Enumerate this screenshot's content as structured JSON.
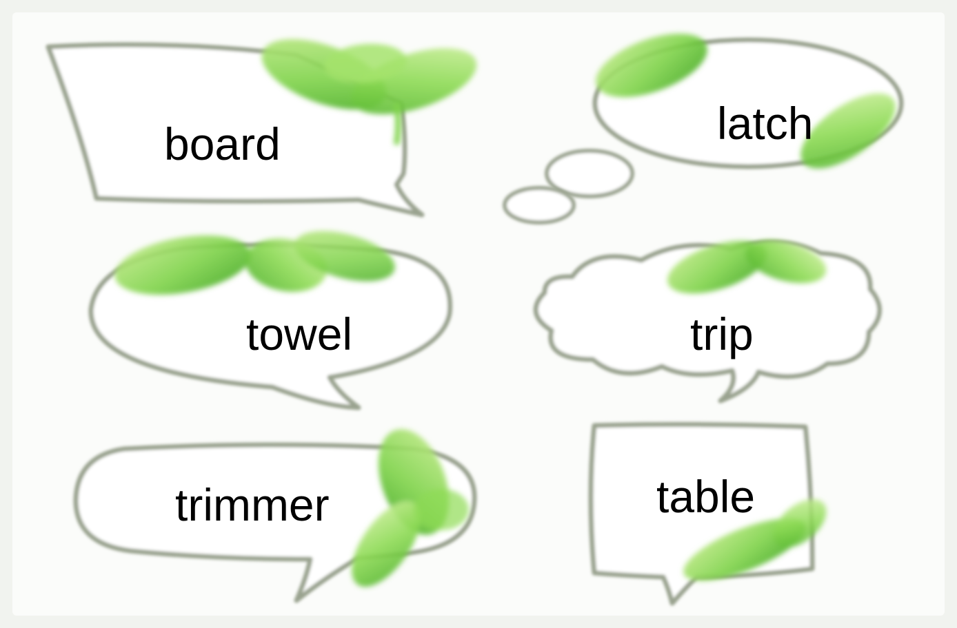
{
  "colors": {
    "background": "#f1f3ef",
    "panel": "#fbfcfa",
    "bubble_outline": "#9aa38f",
    "leaf_light": "#c4ec8a",
    "leaf_mid": "#7fd34a",
    "leaf_dark": "#3fa61e",
    "text": "#000000"
  },
  "bubbles": [
    {
      "id": "board",
      "shape": "speech-rectangle",
      "word": "board"
    },
    {
      "id": "latch",
      "shape": "thought-ellipse",
      "word": "latch"
    },
    {
      "id": "towel",
      "shape": "speech-ellipse",
      "word": "towel"
    },
    {
      "id": "trip",
      "shape": "cloud",
      "word": "trip"
    },
    {
      "id": "trimmer",
      "shape": "speech-rounded",
      "word": "trimmer"
    },
    {
      "id": "table",
      "shape": "speech-square",
      "word": "table"
    }
  ]
}
